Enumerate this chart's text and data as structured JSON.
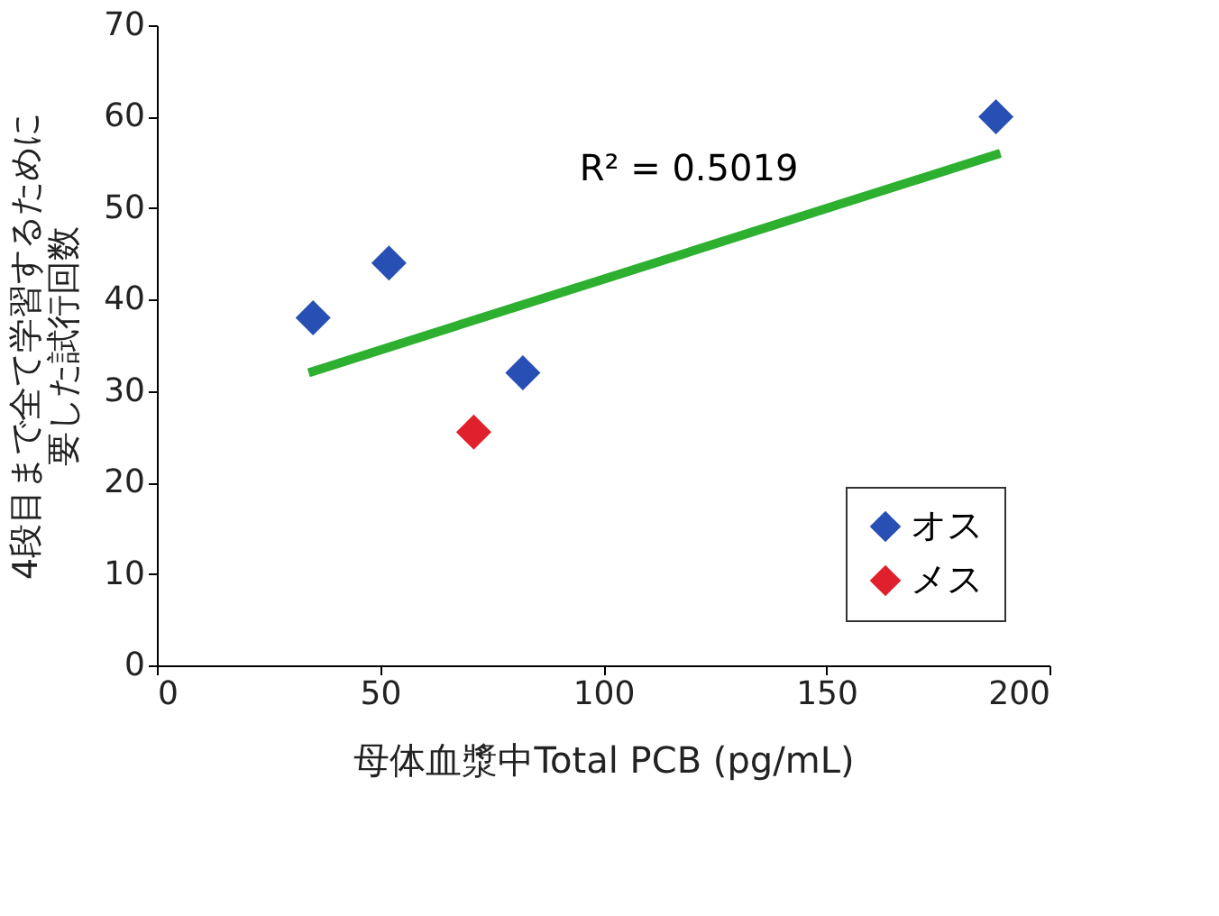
{
  "chart_data": {
    "type": "scatter",
    "xlabel": "母体血漿中Total PCB (pg/mL)",
    "ylabel": "4段目まで全て学習するために要した試行回数",
    "xlim": [
      0,
      200
    ],
    "xticks": [
      0,
      50,
      100,
      150,
      200
    ],
    "ylim": [
      0,
      70
    ],
    "yticks": [
      0,
      10,
      20,
      30,
      40,
      50,
      60,
      70
    ],
    "series": [
      {
        "name": "オス",
        "color": "#2850b4",
        "x": [
          35,
          52,
          82,
          188
        ],
        "values": [
          38,
          44,
          32,
          60
        ]
      },
      {
        "name": "メス",
        "color": "#e0202c",
        "x": [
          71
        ],
        "values": [
          25.5
        ]
      },
      {
        "type": "line",
        "marker": "none",
        "color": "#2db030",
        "x": [
          34,
          189
        ],
        "values": [
          32,
          56
        ]
      }
    ],
    "annotations": [
      "R² = 0.5019"
    ],
    "marker": "diamond",
    "legend": "bottom right",
    "grid": false
  }
}
